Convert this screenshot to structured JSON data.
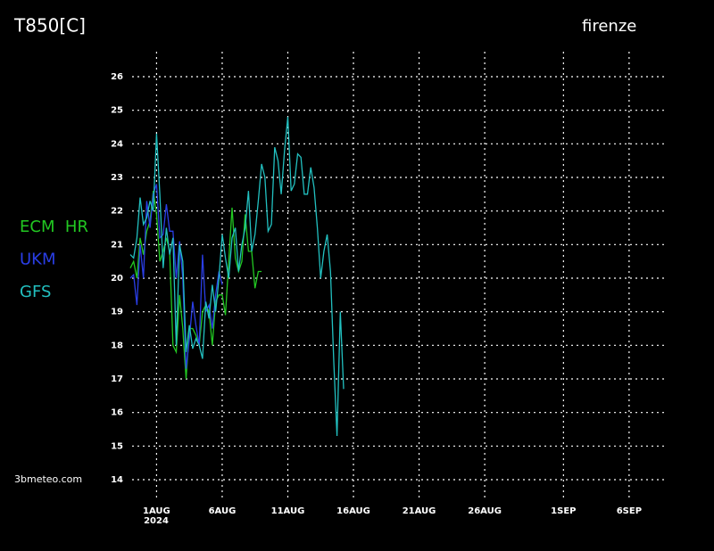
{
  "chart_data": {
    "type": "line",
    "title": "T850[C]",
    "location": "firenze",
    "source": "3bmeteo.com",
    "year_label": "2024",
    "x": [
      -2,
      -1.75,
      -1.5,
      -1.25,
      -1,
      -0.75,
      -0.5,
      -0.25,
      0,
      0.25,
      0.5,
      0.75,
      1,
      1.25,
      1.5,
      1.75,
      2,
      2.25,
      2.5,
      2.75,
      3,
      3.25,
      3.5,
      3.75,
      4,
      4.25,
      4.5,
      4.75,
      5,
      5.25,
      5.5,
      5.75,
      6,
      6.25,
      6.5,
      6.75,
      7,
      7.25,
      7.5,
      7.75,
      8,
      8.25,
      8.5,
      8.75,
      9,
      9.25,
      9.5,
      9.75,
      10,
      10.25,
      10.5,
      10.75,
      11,
      11.25,
      11.5,
      11.75,
      12,
      12.25,
      12.5,
      12.75,
      13,
      13.25,
      13.5,
      13.75,
      14,
      14.25
    ],
    "series": [
      {
        "name": "ECM  HR",
        "color": "#22c822",
        "values": [
          20.3,
          20.5,
          20.0,
          21.2,
          20.7,
          21.4,
          21.7,
          22.6,
          21.9,
          20.5,
          20.8,
          21.2,
          20.8,
          18.0,
          17.8,
          19.5,
          18.5,
          17.0,
          18.5,
          18.5,
          18.3,
          18.0,
          19.0,
          19.2,
          19.0,
          18.0,
          19.3,
          19.5,
          19.5,
          18.9,
          20.5,
          22.1,
          20.6,
          20.2,
          20.5,
          21.9,
          20.8,
          20.8,
          19.7,
          20.2,
          20.2,
          null,
          null,
          null,
          null,
          null,
          null,
          null,
          null,
          null,
          null,
          null,
          null,
          null,
          null,
          null,
          null,
          null,
          null,
          null,
          null,
          null,
          null,
          null,
          null,
          null
        ]
      },
      {
        "name": "UKM",
        "color": "#2a3ee6",
        "values": [
          20.0,
          20.1,
          19.2,
          21.0,
          20.0,
          22.3,
          21.5,
          22.5,
          22.8,
          21.2,
          21.3,
          22.2,
          21.4,
          21.4,
          20.0,
          21.1,
          20.0,
          17.3,
          18.2,
          19.3,
          18.6,
          18.0,
          20.7,
          19.0,
          19.2,
          18.5,
          19.5,
          20.2,
          19.8,
          null,
          null,
          null,
          null,
          null,
          null,
          null,
          null,
          null,
          null,
          null,
          null,
          null,
          null,
          null,
          null,
          null,
          null,
          null,
          null,
          null,
          null,
          null,
          null,
          null,
          null,
          null,
          null,
          null,
          null,
          null,
          null,
          null,
          null,
          null,
          null,
          null
        ]
      },
      {
        "name": "GFS",
        "color": "#22c0c0",
        "values": [
          20.7,
          20.6,
          21.2,
          22.4,
          21.6,
          21.8,
          22.3,
          22.0,
          24.3,
          22.5,
          20.3,
          21.5,
          20.7,
          21.2,
          18.0,
          21.0,
          20.5,
          17.8,
          18.6,
          17.9,
          18.2,
          18.0,
          17.6,
          19.3,
          18.8,
          19.8,
          19.0,
          20.0,
          21.3,
          20.6,
          20.0,
          21.2,
          21.5,
          20.2,
          21.0,
          21.5,
          22.6,
          20.8,
          21.3,
          22.3,
          23.4,
          23.0,
          21.4,
          21.6,
          23.9,
          23.5,
          22.5,
          23.8,
          24.8,
          22.6,
          22.8,
          23.7,
          23.6,
          22.5,
          22.5,
          23.3,
          22.7,
          21.5,
          20.0,
          20.8,
          21.3,
          20.2,
          17.5,
          15.3,
          19.0,
          16.7
        ]
      }
    ],
    "xlim": [
      -2,
      39
    ],
    "xticks": [
      {
        "value": 0,
        "label": "1AUG"
      },
      {
        "value": 5,
        "label": "6AUG"
      },
      {
        "value": 10,
        "label": "11AUG"
      },
      {
        "value": 15,
        "label": "16AUG"
      },
      {
        "value": 20,
        "label": "21AUG"
      },
      {
        "value": 25,
        "label": "26AUG"
      },
      {
        "value": 31,
        "label": "1SEP"
      },
      {
        "value": 36,
        "label": "6SEP"
      }
    ],
    "ylim": [
      14,
      26
    ],
    "yticks": [
      14,
      15,
      16,
      17,
      18,
      19,
      20,
      21,
      22,
      23,
      24,
      25,
      26
    ],
    "grid": true,
    "legend": "left"
  }
}
